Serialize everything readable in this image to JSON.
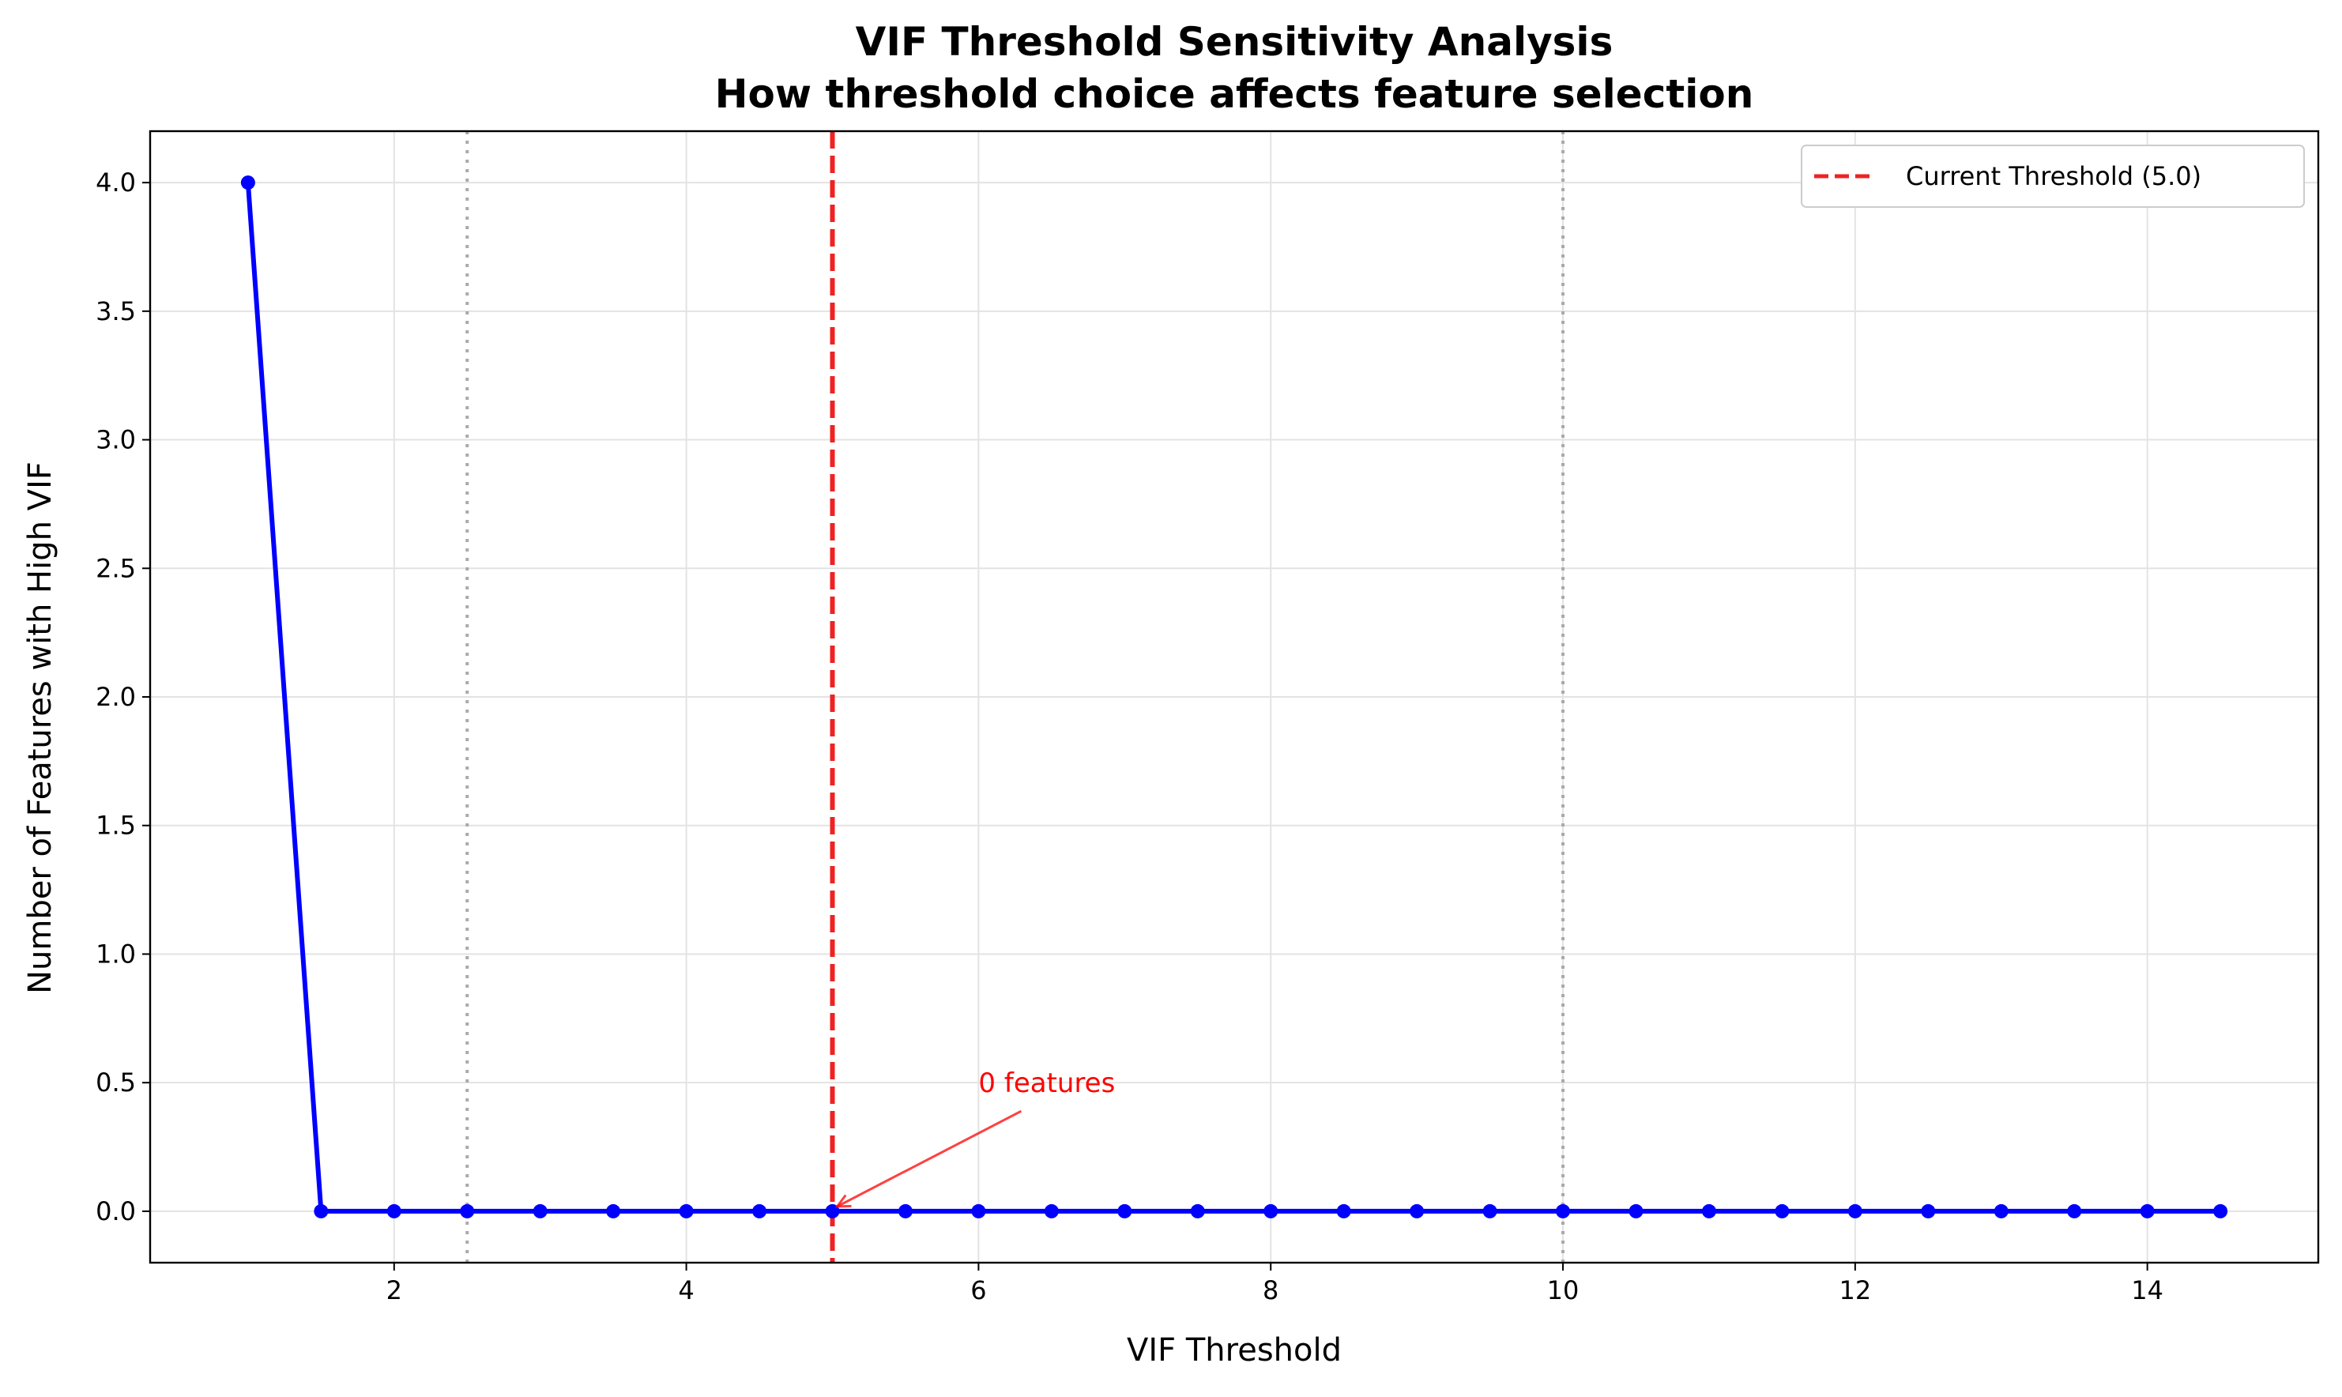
{
  "chart_data": {
    "type": "line",
    "title": "VIF Threshold Sensitivity Analysis",
    "subtitle": "How threshold choice affects feature selection",
    "xlabel": "VIF Threshold",
    "ylabel": "Number of Features with High VIF",
    "xlim": [
      0.33,
      15.17
    ],
    "ylim": [
      -0.2,
      4.2
    ],
    "xticks": [
      2,
      4,
      6,
      8,
      10,
      12,
      14
    ],
    "xtick_labels": [
      "2",
      "4",
      "6",
      "8",
      "10",
      "12",
      "14"
    ],
    "yticks": [
      0.0,
      0.5,
      1.0,
      1.5,
      2.0,
      2.5,
      3.0,
      3.5,
      4.0
    ],
    "ytick_labels": [
      "0.0",
      "0.5",
      "1.0",
      "1.5",
      "2.0",
      "2.5",
      "3.0",
      "3.5",
      "4.0"
    ],
    "grid": true,
    "series": [
      {
        "color": "#0000ff",
        "marker": "circle",
        "x": [
          1.0,
          1.5,
          2.0,
          2.5,
          3.0,
          3.5,
          4.0,
          4.5,
          5.0,
          5.5,
          6.0,
          6.5,
          7.0,
          7.5,
          8.0,
          8.5,
          9.0,
          9.5,
          10.0,
          10.5,
          11.0,
          11.5,
          12.0,
          12.5,
          13.0,
          13.5,
          14.0,
          14.5
        ],
        "y": [
          4,
          0,
          0,
          0,
          0,
          0,
          0,
          0,
          0,
          0,
          0,
          0,
          0,
          0,
          0,
          0,
          0,
          0,
          0,
          0,
          0,
          0,
          0,
          0,
          0,
          0,
          0,
          0
        ]
      }
    ],
    "vlines": [
      {
        "x": 5.0,
        "style": "dashed",
        "color": "#ee2222",
        "label": "Current Threshold (5.0)"
      },
      {
        "x": 2.5,
        "style": "dotted",
        "color": "#aaaaaa"
      },
      {
        "x": 10.0,
        "style": "dotted",
        "color": "#aaaaaa"
      }
    ],
    "annotations": [
      {
        "text": "0 features",
        "x": 5.0,
        "y": 0.0,
        "text_x": 6.0,
        "text_y": 0.5,
        "color": "#ff0000"
      }
    ],
    "legend": {
      "position": "top-right",
      "entries": [
        "Current Threshold (5.0)"
      ]
    }
  }
}
